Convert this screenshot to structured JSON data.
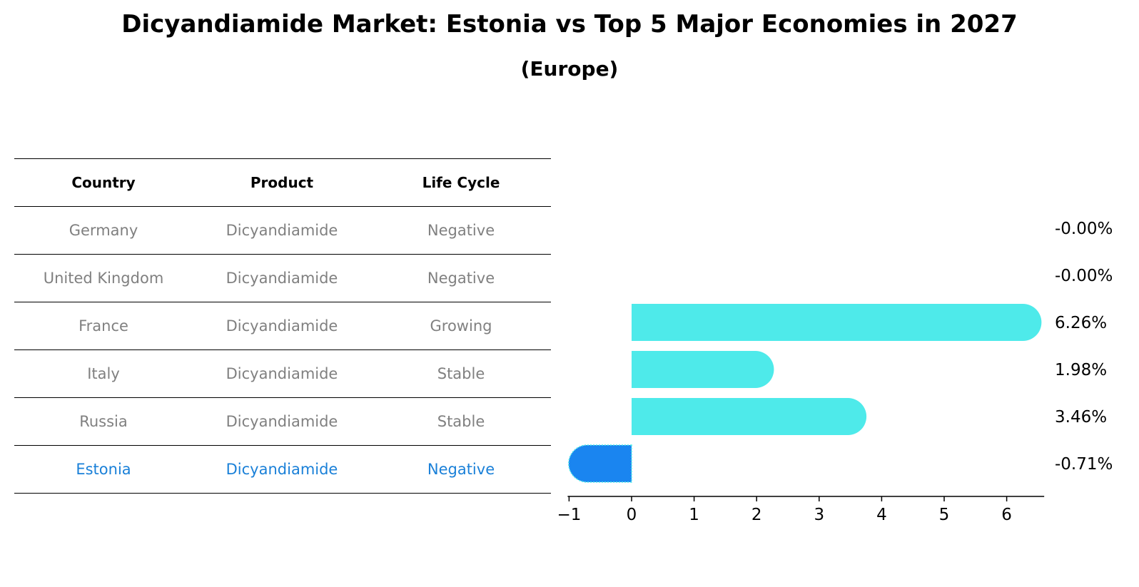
{
  "title": "Dicyandiamide Market: Estonia vs Top 5 Major Economies in 2027",
  "subtitle": "(Europe)",
  "table": {
    "headers": [
      "Country",
      "Product",
      "Life Cycle"
    ],
    "rows": [
      {
        "country": "Germany",
        "product": "Dicyandiamide",
        "life_cycle": "Negative"
      },
      {
        "country": "United Kingdom",
        "product": "Dicyandiamide",
        "life_cycle": "Negative"
      },
      {
        "country": "France",
        "product": "Dicyandiamide",
        "life_cycle": "Growing"
      },
      {
        "country": "Italy",
        "product": "Dicyandiamide",
        "life_cycle": "Stable"
      },
      {
        "country": "Russia",
        "product": "Dicyandiamide",
        "life_cycle": "Stable"
      },
      {
        "country": "Estonia",
        "product": "Dicyandiamide",
        "life_cycle": "Negative",
        "highlight": true
      }
    ]
  },
  "chart_data": {
    "type": "bar",
    "orientation": "horizontal",
    "categories": [
      "Germany",
      "United Kingdom",
      "France",
      "Italy",
      "Russia",
      "Estonia"
    ],
    "values": [
      -0.0,
      -0.0,
      6.26,
      1.98,
      3.46,
      -0.71
    ],
    "value_labels": [
      "-0.00%",
      "-0.00%",
      "6.26%",
      "1.98%",
      "3.46%",
      "-0.71%"
    ],
    "xlim": [
      -1,
      6.6
    ],
    "xticks": [
      -1,
      0,
      1,
      2,
      3,
      4,
      5,
      6
    ],
    "xtick_labels": [
      "−1",
      "0",
      "1",
      "2",
      "3",
      "4",
      "5",
      "6"
    ],
    "colors": {
      "default": "#4eeaea",
      "highlight": "#1a85f0"
    },
    "highlight": "Estonia",
    "grid": false
  }
}
